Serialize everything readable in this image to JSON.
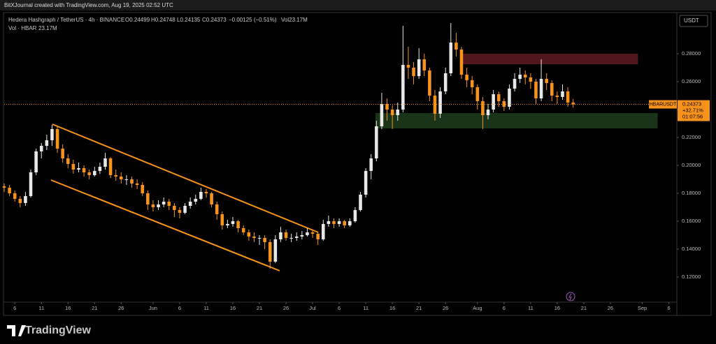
{
  "header": "BitXJournal created with TradingView.com, Aug 19, 2025 02:52 UTC",
  "legend": {
    "symbol": "Hedera Hashgraph / TetherUS · 4h · BINANCE",
    "o": "O0.24499",
    "h": "H0.24748",
    "l": "L0.24135",
    "c": "C0.24373",
    "change": "−0.00125 (−0.51%)",
    "vol": "Vol23.17M",
    "vol_label": "Vol · HBAR",
    "vol_value": "23.17M"
  },
  "currency": "USDT",
  "brand": "TradingView",
  "chart_data": {
    "type": "candlestick",
    "up_color": "#e8e8e8",
    "down_color": "#f7931a",
    "x": [
      3,
      4,
      5,
      6,
      7,
      8,
      9,
      10,
      11,
      12,
      13,
      14,
      15,
      16,
      17,
      18,
      19,
      20,
      21,
      22,
      23,
      24,
      25,
      26,
      27,
      28,
      29,
      30,
      31,
      32,
      33,
      34,
      35,
      36,
      37,
      38,
      39,
      40,
      41,
      42,
      43,
      44,
      45,
      46,
      47,
      48,
      49,
      50,
      51,
      52,
      53,
      54,
      55,
      56,
      57,
      58,
      59,
      60,
      61,
      62,
      63,
      64,
      65,
      66,
      67,
      68,
      69,
      70,
      71,
      72,
      73,
      74,
      75,
      76,
      77,
      78,
      79,
      80,
      81,
      82,
      83,
      84,
      85,
      86,
      87,
      88,
      89,
      90,
      91,
      92,
      93,
      94,
      95,
      96,
      97,
      98,
      99,
      100,
      101,
      102,
      103,
      104,
      105,
      106,
      107,
      108,
      109,
      110
    ],
    "open": [
      0.185,
      0.184,
      0.18,
      0.176,
      0.173,
      0.178,
      0.195,
      0.21,
      0.214,
      0.218,
      0.226,
      0.212,
      0.205,
      0.201,
      0.197,
      0.198,
      0.195,
      0.193,
      0.196,
      0.199,
      0.205,
      0.193,
      0.192,
      0.19,
      0.19,
      0.187,
      0.186,
      0.18,
      0.172,
      0.17,
      0.172,
      0.174,
      0.171,
      0.168,
      0.166,
      0.171,
      0.174,
      0.176,
      0.181,
      0.18,
      0.172,
      0.165,
      0.157,
      0.158,
      0.16,
      0.155,
      0.152,
      0.149,
      0.148,
      0.148,
      0.145,
      0.131,
      0.147,
      0.152,
      0.148,
      0.148,
      0.149,
      0.15,
      0.152,
      0.151,
      0.147,
      0.158,
      0.16,
      0.158,
      0.16,
      0.157,
      0.16,
      0.168,
      0.179,
      0.196,
      0.205,
      0.228,
      0.244,
      0.24,
      0.236,
      0.24,
      0.272,
      0.27,
      0.264,
      0.276,
      0.268,
      0.25,
      0.237,
      0.253,
      0.266,
      0.288,
      0.283,
      0.265,
      0.261,
      0.256,
      0.246,
      0.236,
      0.24,
      0.251,
      0.246,
      0.242,
      0.255,
      0.262,
      0.265,
      0.263,
      0.26,
      0.248,
      0.262,
      0.259,
      0.25,
      0.249,
      0.253,
      0.24499
    ],
    "high": [
      0.187,
      0.186,
      0.182,
      0.178,
      0.181,
      0.197,
      0.212,
      0.216,
      0.222,
      0.229,
      0.228,
      0.215,
      0.208,
      0.204,
      0.202,
      0.2,
      0.197,
      0.199,
      0.202,
      0.209,
      0.206,
      0.197,
      0.195,
      0.193,
      0.192,
      0.19,
      0.188,
      0.182,
      0.175,
      0.175,
      0.177,
      0.176,
      0.173,
      0.17,
      0.173,
      0.177,
      0.179,
      0.184,
      0.183,
      0.181,
      0.174,
      0.167,
      0.161,
      0.163,
      0.161,
      0.157,
      0.154,
      0.152,
      0.15,
      0.15,
      0.147,
      0.15,
      0.156,
      0.154,
      0.151,
      0.152,
      0.153,
      0.155,
      0.154,
      0.152,
      0.161,
      0.164,
      0.162,
      0.162,
      0.161,
      0.162,
      0.17,
      0.181,
      0.198,
      0.208,
      0.232,
      0.252,
      0.248,
      0.243,
      0.245,
      0.3,
      0.285,
      0.274,
      0.284,
      0.28,
      0.27,
      0.254,
      0.256,
      0.27,
      0.302,
      0.295,
      0.285,
      0.27,
      0.264,
      0.258,
      0.249,
      0.244,
      0.254,
      0.253,
      0.248,
      0.258,
      0.266,
      0.27,
      0.268,
      0.266,
      0.262,
      0.276,
      0.266,
      0.261,
      0.253,
      0.258,
      0.256,
      0.24748
    ],
    "low": [
      0.181,
      0.178,
      0.174,
      0.17,
      0.171,
      0.177,
      0.193,
      0.205,
      0.211,
      0.214,
      0.209,
      0.202,
      0.198,
      0.194,
      0.195,
      0.192,
      0.19,
      0.192,
      0.194,
      0.197,
      0.191,
      0.189,
      0.187,
      0.186,
      0.184,
      0.183,
      0.178,
      0.168,
      0.167,
      0.168,
      0.17,
      0.168,
      0.163,
      0.162,
      0.165,
      0.169,
      0.172,
      0.175,
      0.177,
      0.17,
      0.161,
      0.154,
      0.155,
      0.156,
      0.152,
      0.15,
      0.146,
      0.145,
      0.143,
      0.14,
      0.126,
      0.13,
      0.145,
      0.146,
      0.145,
      0.146,
      0.147,
      0.149,
      0.148,
      0.143,
      0.146,
      0.156,
      0.155,
      0.156,
      0.155,
      0.156,
      0.159,
      0.167,
      0.177,
      0.19,
      0.203,
      0.226,
      0.232,
      0.226,
      0.232,
      0.238,
      0.262,
      0.258,
      0.262,
      0.264,
      0.246,
      0.232,
      0.234,
      0.251,
      0.264,
      0.278,
      0.262,
      0.256,
      0.251,
      0.24,
      0.226,
      0.233,
      0.238,
      0.242,
      0.239,
      0.24,
      0.253,
      0.259,
      0.258,
      0.255,
      0.244,
      0.246,
      0.254,
      0.246,
      0.244,
      0.247,
      0.242,
      0.24135
    ],
    "close": [
      0.184,
      0.18,
      0.176,
      0.173,
      0.178,
      0.195,
      0.21,
      0.214,
      0.218,
      0.226,
      0.212,
      0.205,
      0.201,
      0.197,
      0.198,
      0.195,
      0.193,
      0.196,
      0.199,
      0.205,
      0.193,
      0.192,
      0.19,
      0.19,
      0.187,
      0.186,
      0.18,
      0.172,
      0.17,
      0.172,
      0.174,
      0.171,
      0.168,
      0.166,
      0.171,
      0.174,
      0.176,
      0.181,
      0.18,
      0.172,
      0.165,
      0.157,
      0.158,
      0.16,
      0.155,
      0.152,
      0.149,
      0.148,
      0.148,
      0.145,
      0.131,
      0.147,
      0.152,
      0.148,
      0.148,
      0.149,
      0.15,
      0.152,
      0.151,
      0.147,
      0.158,
      0.16,
      0.158,
      0.16,
      0.157,
      0.16,
      0.168,
      0.179,
      0.196,
      0.205,
      0.228,
      0.244,
      0.24,
      0.236,
      0.24,
      0.272,
      0.27,
      0.264,
      0.276,
      0.268,
      0.25,
      0.237,
      0.253,
      0.266,
      0.288,
      0.283,
      0.265,
      0.261,
      0.256,
      0.246,
      0.236,
      0.24,
      0.251,
      0.246,
      0.242,
      0.255,
      0.262,
      0.265,
      0.263,
      0.26,
      0.248,
      0.262,
      0.259,
      0.25,
      0.249,
      0.253,
      0.245,
      0.24373
    ],
    "xlim": [
      3,
      129.5
    ],
    "ylim": [
      0.1025,
      0.3095
    ],
    "xticks": [
      {
        "value": 5,
        "label": "6"
      },
      {
        "value": 10,
        "label": "11"
      },
      {
        "value": 15,
        "label": "16"
      },
      {
        "value": 20,
        "label": "21"
      },
      {
        "value": 25,
        "label": "26"
      },
      {
        "value": 31,
        "label": "Jun"
      },
      {
        "value": 36,
        "label": "6"
      },
      {
        "value": 41,
        "label": "11"
      },
      {
        "value": 46,
        "label": "16"
      },
      {
        "value": 51,
        "label": "21"
      },
      {
        "value": 56,
        "label": "26"
      },
      {
        "value": 61,
        "label": "Jul"
      },
      {
        "value": 66,
        "label": "6"
      },
      {
        "value": 71,
        "label": "11"
      },
      {
        "value": 76,
        "label": "16"
      },
      {
        "value": 81,
        "label": "21"
      },
      {
        "value": 86,
        "label": "26"
      },
      {
        "value": 92,
        "label": "Aug"
      },
      {
        "value": 97,
        "label": "6"
      },
      {
        "value": 102,
        "label": "11"
      },
      {
        "value": 107,
        "label": "16"
      },
      {
        "value": 112,
        "label": "21"
      },
      {
        "value": 117,
        "label": "26"
      },
      {
        "value": 123,
        "label": "Sep"
      },
      {
        "value": 128,
        "label": "6"
      }
    ],
    "yticks": [
      {
        "value": 0.12,
        "label": "0.12000"
      },
      {
        "value": 0.14,
        "label": "0.14000"
      },
      {
        "value": 0.16,
        "label": "0.16000"
      },
      {
        "value": 0.18,
        "label": "0.18000"
      },
      {
        "value": 0.2,
        "label": "0.20000"
      },
      {
        "value": 0.22,
        "label": "0.22000"
      },
      {
        "value": 0.24,
        "label": "0.24000"
      },
      {
        "value": 0.26,
        "label": "0.26000"
      },
      {
        "value": 0.28,
        "label": "0.28000"
      }
    ],
    "zones": [
      {
        "x": [
          88.9,
          122.2
        ],
        "y": [
          0.2725,
          0.28
        ],
        "color": "#5a1a20"
      },
      {
        "x": [
          72.8,
          125.9
        ],
        "y": [
          0.2265,
          0.2375
        ],
        "color": "#1c3a1c"
      }
    ],
    "trendlines": [
      {
        "x": [
          12.05,
          62.05
        ],
        "y": [
          0.2295,
          0.152
        ],
        "color": "#f7931a"
      },
      {
        "x": [
          11.8,
          54.8
        ],
        "y": [
          0.1895,
          0.1245
        ],
        "color": "#f7931a"
      }
    ],
    "last": {
      "symbol": "HBARUSDT",
      "value": {
        "value": 0.24373,
        "label": "0.24373"
      },
      "change": "+32.71%",
      "countdown": "01:07:56"
    }
  }
}
